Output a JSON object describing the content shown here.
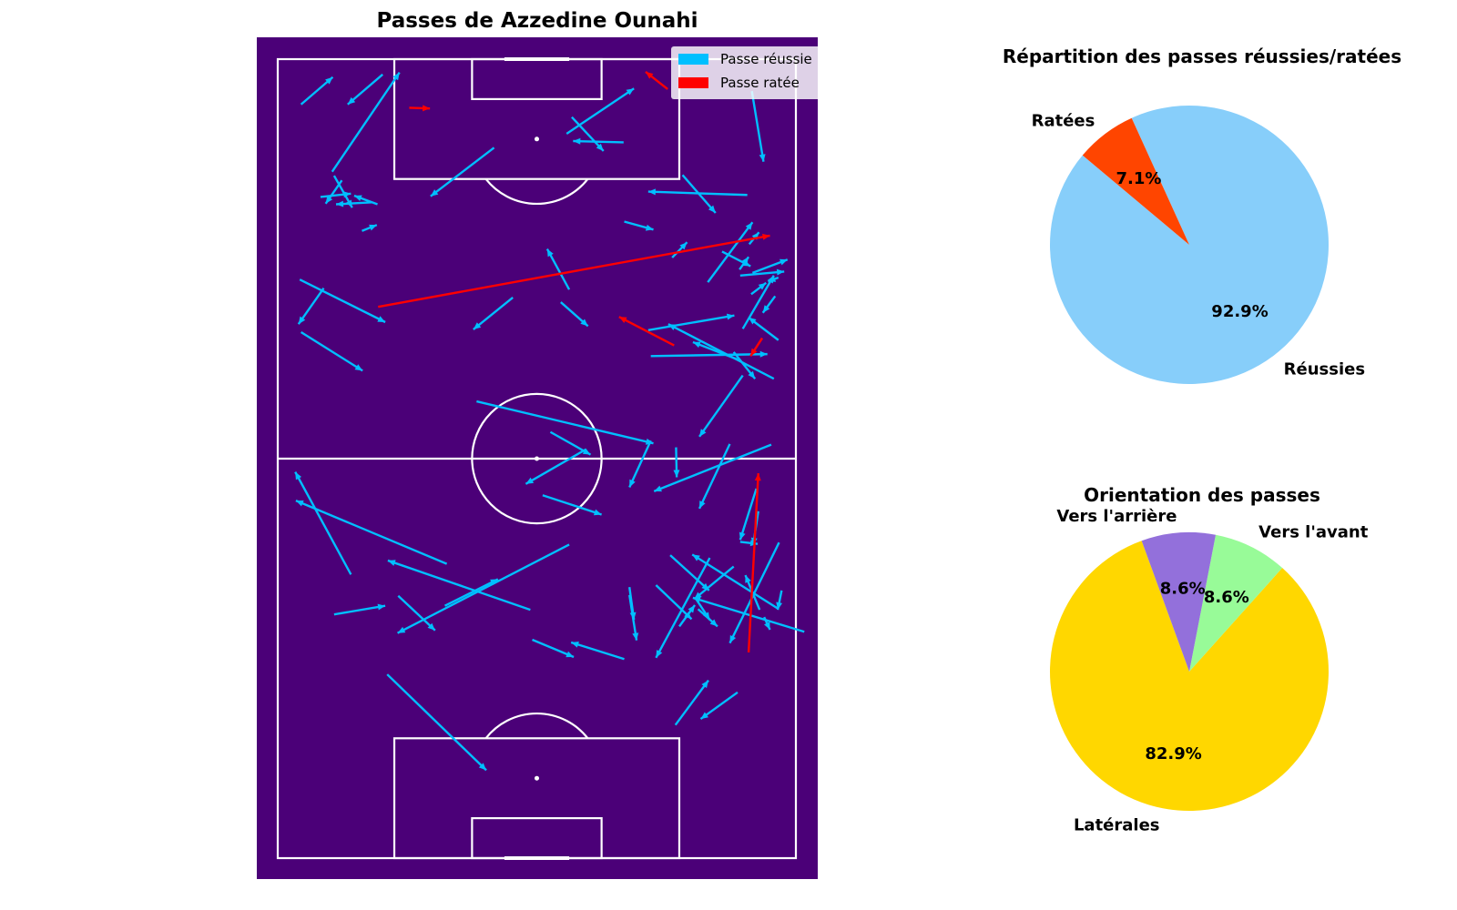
{
  "pitch_title": "Passes de Azzedine Ounahi",
  "pie1_title": "Répartition des passes réussies/ratées",
  "pie2_title": "Orientation des passes",
  "legend": {
    "success_label": "Passe réussie",
    "fail_label": "Passe ratée",
    "success_color": "#00bfff",
    "fail_color": "#ff0000"
  },
  "colors": {
    "pitch": "#4b0078",
    "lines": "#ffffff"
  },
  "chart_data": [
    {
      "type": "scatter",
      "subtype": "pass-map",
      "title": "Passes de Azzedine Ounahi",
      "pitch_length": 120,
      "pitch_width": 80,
      "x_meaning": "distance from the bottom goal line",
      "y_meaning": "distance from the left touchline",
      "series": [
        {
          "name": "Passe réussie",
          "color": "#00bfff",
          "passes": [
            [
              113.2,
              3.6,
              117.3,
              8.5
            ],
            [
              117.7,
              16.2,
              113.2,
              10.8
            ],
            [
              103.1,
              8.4,
              118.0,
              18.8
            ],
            [
              106.7,
              33.4,
              99.4,
              23.6
            ],
            [
              111.3,
              45.4,
              106.2,
              50.3
            ],
            [
              115.2,
              73.2,
              104.6,
              75.0
            ],
            [
              108.8,
              44.6,
              115.6,
              55.0
            ],
            [
              102.6,
              62.5,
              96.9,
              67.6
            ],
            [
              99.6,
              72.5,
              100.1,
              57.2
            ],
            [
              107.5,
              53.4,
              107.7,
              45.6
            ],
            [
              102.5,
              8.7,
              97.7,
              11.5
            ],
            [
              101.8,
              9.9,
              98.3,
              7.4
            ],
            [
              98.2,
              15.4,
              99.5,
              11.8
            ],
            [
              98.5,
              14.6,
              98.2,
              9.0
            ],
            [
              99.3,
              6.6,
              99.8,
              11.3
            ],
            [
              94.2,
              13.0,
              95.1,
              15.3
            ],
            [
              95.6,
              53.5,
              94.4,
              58.0
            ],
            [
              90.2,
              60.9,
              92.5,
              63.2
            ],
            [
              91.1,
              68.6,
              88.9,
              73.0
            ],
            [
              87.9,
              73.3,
              89.9,
              78.7
            ],
            [
              88.4,
              71.3,
              90.3,
              72.7
            ],
            [
              87.2,
              77.3,
              86.6,
              75.7
            ],
            [
              86.5,
              66.4,
              95.5,
              73.3
            ],
            [
              87.5,
              71.4,
              88.1,
              78.2
            ],
            [
              84.7,
              73.1,
              86.4,
              75.4
            ],
            [
              84.4,
              76.8,
              81.9,
              74.9
            ],
            [
              79.3,
              57.2,
              81.5,
              70.5
            ],
            [
              79.5,
              71.8,
              87.5,
              76.6
            ],
            [
              92.2,
              72.8,
              94.0,
              74.3
            ],
            [
              85.4,
              45.0,
              91.5,
              41.6
            ],
            [
              85.6,
              7.1,
              80.2,
              3.2
            ],
            [
              75.4,
              57.6,
              75.7,
              75.6
            ],
            [
              72.0,
              76.6,
              80.2,
              60.3
            ],
            [
              77.8,
              77.3,
              81.2,
              72.7
            ],
            [
              76.0,
              70.4,
              72.0,
              73.7
            ],
            [
              79.0,
              3.6,
              73.2,
              13.1
            ],
            [
              86.9,
              3.4,
              80.5,
              16.6
            ],
            [
              84.2,
              36.3,
              79.4,
              30.2
            ],
            [
              83.5,
              43.7,
              79.9,
              47.9
            ],
            [
              74.9,
              71.0,
              77.5,
              64.1
            ],
            [
              68.6,
              30.7,
              62.3,
              58.0
            ],
            [
              64.0,
              42.1,
              60.6,
              48.3
            ],
            [
              61.4,
              47.6,
              56.2,
              38.3
            ],
            [
              72.5,
              71.8,
              63.3,
              65.1
            ],
            [
              62.1,
              76.2,
              55.1,
              58.1
            ],
            [
              62.2,
              69.8,
              52.5,
              65.1
            ],
            [
              62.7,
              57.6,
              55.7,
              54.3
            ],
            [
              61.7,
              61.5,
              57.2,
              61.6
            ],
            [
              54.5,
              40.9,
              51.6,
              50.0
            ],
            [
              55.5,
              73.9,
              47.8,
              71.4
            ],
            [
              52.1,
              74.2,
              47.0,
              73.4
            ],
            [
              47.5,
              71.4,
              47.2,
              74.1
            ],
            [
              47.4,
              77.4,
              32.3,
              69.8
            ],
            [
              37.5,
              77.2,
              45.6,
              64.0
            ],
            [
              45.1,
              66.7,
              30.1,
              58.4
            ],
            [
              34.0,
              81.3,
              39.1,
              64.1
            ],
            [
              36.2,
              75.1,
              34.3,
              76.0
            ],
            [
              40.2,
              77.8,
              37.3,
              77.2
            ],
            [
              43.8,
              70.4,
              38.9,
              64.3
            ],
            [
              45.5,
              60.6,
              40.2,
              66.6
            ],
            [
              41.0,
              58.4,
              35.9,
              63.9
            ],
            [
              34.8,
              62.0,
              38.0,
              64.4
            ],
            [
              37.3,
              74.4,
              42.5,
              72.2
            ],
            [
              40.7,
              54.3,
              35.8,
              55.0
            ],
            [
              39.5,
              54.3,
              32.7,
              55.4
            ],
            [
              29.9,
              53.5,
              32.4,
              45.3
            ],
            [
              37.4,
              64.9,
              34.8,
              67.9
            ],
            [
              38.9,
              64.6,
              35.8,
              66.7
            ],
            [
              24.9,
              71.0,
              20.9,
              65.3
            ],
            [
              20.0,
              61.4,
              26.7,
              66.5
            ],
            [
              32.8,
              39.3,
              30.2,
              45.7
            ],
            [
              42.6,
              11.3,
              58.0,
              2.7
            ],
            [
              44.2,
              26.1,
              53.7,
              2.8
            ],
            [
              37.3,
              39.0,
              44.7,
              17.0
            ],
            [
              47.1,
              45.0,
              33.8,
              18.5
            ],
            [
              39.4,
              18.6,
              34.2,
              24.3
            ],
            [
              36.6,
              8.7,
              37.9,
              16.6
            ],
            [
              37.9,
              25.8,
              41.9,
              34.0
            ],
            [
              27.6,
              16.9,
              13.2,
              32.2
            ]
          ]
        },
        {
          "name": "Passe ratée",
          "color": "#ff0000",
          "passes": [
            [
              115.5,
              60.2,
              118.1,
              56.8
            ],
            [
              112.7,
              20.3,
              112.6,
              23.5
            ],
            [
              82.8,
              15.5,
              93.5,
              76.0
            ],
            [
              77.0,
              61.2,
              81.3,
              52.7
            ],
            [
              78.1,
              74.8,
              75.4,
              73.0
            ],
            [
              30.9,
              72.7,
              57.8,
              74.2
            ]
          ]
        }
      ]
    },
    {
      "type": "pie",
      "title": "Répartition des passes réussies/ratées",
      "labels": [
        "Réussies",
        "Ratées"
      ],
      "values": [
        92.9,
        7.1
      ],
      "display": [
        "92.9%",
        "7.1%"
      ],
      "colors": [
        "#87cefa",
        "#ff4500"
      ]
    },
    {
      "type": "pie",
      "title": "Orientation des passes",
      "labels": [
        "Latérales",
        "Vers l'avant",
        "Vers l'arrière"
      ],
      "values": [
        82.9,
        8.6,
        8.6
      ],
      "display": [
        "82.9%",
        "8.6%",
        "8.6%"
      ],
      "colors": [
        "#ffd700",
        "#98fb98",
        "#9370db"
      ]
    }
  ]
}
